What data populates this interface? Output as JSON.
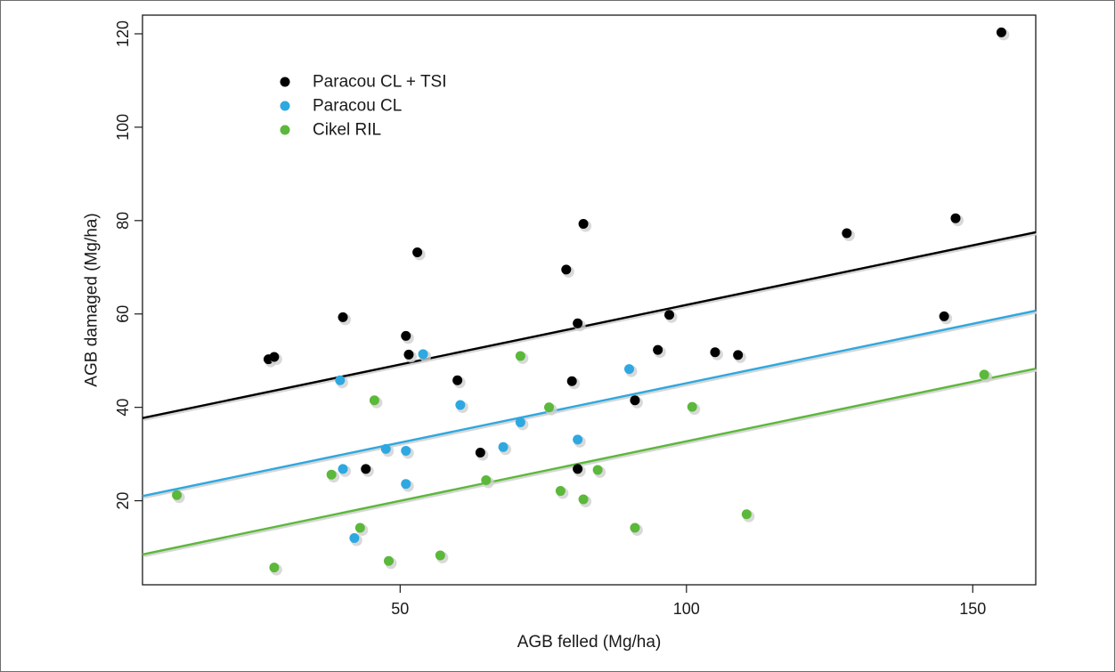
{
  "chart_data": {
    "type": "scatter",
    "xlabel": "AGB felled (Mg/ha)",
    "ylabel": "AGB damaged (Mg/ha)",
    "xlim": [
      5,
      161
    ],
    "ylim": [
      2,
      124
    ],
    "xticks": [
      50,
      100,
      150
    ],
    "yticks": [
      20,
      40,
      60,
      80,
      100,
      120
    ],
    "grid": false,
    "legend_position": "top-left",
    "series": [
      {
        "name": "Paracou CL + TSI",
        "color": "#000000",
        "points": [
          [
            27,
            50.3
          ],
          [
            28,
            50.8
          ],
          [
            40,
            59.3
          ],
          [
            44,
            26.8
          ],
          [
            51,
            55.3
          ],
          [
            51.5,
            51.3
          ],
          [
            53,
            73.2
          ],
          [
            60,
            45.8
          ],
          [
            64,
            30.3
          ],
          [
            79,
            69.5
          ],
          [
            80,
            45.6
          ],
          [
            81,
            58
          ],
          [
            81,
            26.8
          ],
          [
            82,
            79.3
          ],
          [
            91,
            41.5
          ],
          [
            95,
            52.3
          ],
          [
            97,
            59.8
          ],
          [
            105,
            51.8
          ],
          [
            109,
            51.2
          ],
          [
            128,
            77.3
          ],
          [
            145,
            59.5
          ],
          [
            147,
            80.5
          ],
          [
            155,
            120.3
          ]
        ],
        "fit": [
          [
            5,
            37.7
          ],
          [
            161,
            77.5
          ]
        ]
      },
      {
        "name": "Paracou CL",
        "color": "#2ea8e0",
        "points": [
          [
            39.5,
            45.8
          ],
          [
            40,
            26.8
          ],
          [
            42,
            12
          ],
          [
            47.5,
            31.1
          ],
          [
            51,
            30.7
          ],
          [
            51,
            23.6
          ],
          [
            54,
            51.4
          ],
          [
            60.5,
            40.5
          ],
          [
            68,
            31.5
          ],
          [
            71,
            36.8
          ],
          [
            81,
            33.1
          ],
          [
            90,
            48.2
          ]
        ],
        "fit": [
          [
            5,
            21
          ],
          [
            161,
            60.7
          ]
        ]
      },
      {
        "name": "Cikel RIL",
        "color": "#5cb83a",
        "points": [
          [
            11,
            21.2
          ],
          [
            28,
            5.7
          ],
          [
            38,
            25.6
          ],
          [
            43,
            14.2
          ],
          [
            45.5,
            41.5
          ],
          [
            48,
            7.1
          ],
          [
            57,
            8.3
          ],
          [
            65,
            24.4
          ],
          [
            71,
            51
          ],
          [
            76,
            40
          ],
          [
            78,
            22.1
          ],
          [
            82,
            20.3
          ],
          [
            84.5,
            26.6
          ],
          [
            91,
            14.2
          ],
          [
            101,
            40.1
          ],
          [
            110.5,
            17.1
          ],
          [
            152,
            47
          ]
        ],
        "fit": [
          [
            5,
            8.5
          ],
          [
            161,
            48.3
          ]
        ]
      }
    ]
  }
}
